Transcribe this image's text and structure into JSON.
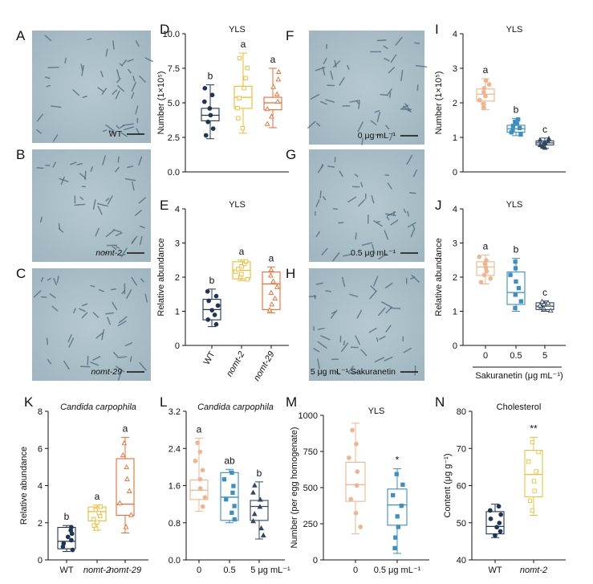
{
  "colors": {
    "dark": "#1f3556",
    "yellow": "#f2b92b",
    "orange": "#ef6a2d",
    "peach": "#f1b48e",
    "blue": "#3a8fc4",
    "steel": "#314763",
    "gold": "#f0bf38",
    "micro": "#aabfc8"
  },
  "photos": {
    "A": {
      "letter": "A",
      "caption": "WT",
      "italic": false
    },
    "B": {
      "letter": "B",
      "caption": "nomt-2",
      "italic": true
    },
    "C": {
      "letter": "C",
      "caption": "nomt-29",
      "italic": true
    },
    "F": {
      "letter": "F",
      "caption": "0 μg mL⁻¹",
      "italic": false
    },
    "G": {
      "letter": "G",
      "caption": "0.5 μg mL⁻¹",
      "italic": false
    },
    "H": {
      "letter": "H",
      "caption": "5 μg mL⁻¹ Sakuranetin",
      "italic": false
    }
  },
  "chart_data": [
    {
      "id": "D",
      "type": "box",
      "title": "YLS",
      "title_italic": false,
      "ylabel": "Number (1×10⁵)",
      "ylim": [
        0,
        10
      ],
      "yticks": [
        "0.0",
        "2.5",
        "5.0",
        "7.5",
        "10.0"
      ],
      "categories": [],
      "groups": [
        {
          "color": "#1f3556",
          "marker": "circle",
          "fill": true,
          "q1": 3.7,
          "median": 4.1,
          "q3": 4.6,
          "wmin": 2.4,
          "wmax": 6.3,
          "letter": "b"
        },
        {
          "color": "#f2b92b",
          "marker": "square",
          "fill": false,
          "q1": 4.6,
          "median": 5.4,
          "q3": 6.2,
          "wmin": 2.8,
          "wmax": 8.6,
          "letter": "a"
        },
        {
          "color": "#ef6a2d",
          "marker": "triangle",
          "fill": false,
          "q1": 4.5,
          "median": 5.0,
          "q3": 5.4,
          "wmin": 3.2,
          "wmax": 7.5,
          "letter": "a"
        }
      ]
    },
    {
      "id": "E",
      "type": "box",
      "title": "YLS",
      "title_italic": false,
      "ylabel": "Relative abundance",
      "ylim": [
        0,
        4
      ],
      "yticks": [
        "0",
        "1",
        "2",
        "3",
        "4"
      ],
      "categories": [
        "WT",
        "nomt-2",
        "nomt-29"
      ],
      "cat_italic": [
        false,
        true,
        true
      ],
      "rotate": true,
      "groups": [
        {
          "color": "#1f3556",
          "marker": "circle",
          "fill": true,
          "q1": 0.75,
          "median": 1.05,
          "q3": 1.35,
          "wmin": 0.55,
          "wmax": 1.65,
          "letter": "b"
        },
        {
          "color": "#f2b92b",
          "marker": "square",
          "fill": false,
          "q1": 1.95,
          "median": 2.2,
          "q3": 2.45,
          "wmin": 1.9,
          "wmax": 2.5,
          "letter": "a"
        },
        {
          "color": "#ef6a2d",
          "marker": "triangle",
          "fill": false,
          "q1": 1.05,
          "median": 1.8,
          "q3": 2.15,
          "wmin": 0.95,
          "wmax": 2.3,
          "letter": "a"
        }
      ]
    },
    {
      "id": "I",
      "type": "box",
      "title": "YLS",
      "title_italic": false,
      "ylabel": "Number (1×10⁵)",
      "ylim": [
        0,
        4
      ],
      "yticks": [
        "0",
        "1",
        "2",
        "3",
        "4"
      ],
      "categories": [],
      "groups": [
        {
          "color": "#f1b48e",
          "marker": "circle",
          "fill": true,
          "q1": 2.05,
          "median": 2.25,
          "q3": 2.4,
          "wmin": 1.8,
          "wmax": 2.7,
          "letter": "a"
        },
        {
          "color": "#3a8fc4",
          "marker": "square",
          "fill": true,
          "q1": 1.15,
          "median": 1.25,
          "q3": 1.35,
          "wmin": 1.05,
          "wmax": 1.55,
          "letter": "b"
        },
        {
          "color": "#314763",
          "marker": "triangle",
          "fill": true,
          "q1": 0.78,
          "median": 0.84,
          "q3": 0.9,
          "wmin": 0.68,
          "wmax": 0.98,
          "letter": "c"
        }
      ]
    },
    {
      "id": "J",
      "type": "box",
      "title": "YLS",
      "title_italic": false,
      "ylabel": "Relative abundance",
      "ylim": [
        0,
        4
      ],
      "yticks": [
        "0",
        "1",
        "2",
        "3",
        "4"
      ],
      "categories": [
        "0",
        "0.5",
        "5"
      ],
      "xlabel": "Sakuranetin (μg mL⁻¹)",
      "groups": [
        {
          "color": "#f1b48e",
          "marker": "circle",
          "fill": true,
          "q1": 2.05,
          "median": 2.3,
          "q3": 2.45,
          "wmin": 1.8,
          "wmax": 2.65,
          "letter": "a"
        },
        {
          "color": "#3a8fc4",
          "marker": "square",
          "fill": true,
          "q1": 1.2,
          "median": 1.55,
          "q3": 2.15,
          "wmin": 1.0,
          "wmax": 2.55,
          "letter": "b"
        },
        {
          "color": "#314763",
          "marker": "triangle",
          "fill": false,
          "q1": 1.05,
          "median": 1.15,
          "q3": 1.25,
          "wmin": 1.0,
          "wmax": 1.3,
          "letter": "c"
        }
      ]
    },
    {
      "id": "K",
      "type": "box",
      "title": "Candida carpophila",
      "title_italic": true,
      "ylabel": "Relative abundance",
      "ylim": [
        0,
        8
      ],
      "yticks": [
        "0",
        "2",
        "4",
        "6",
        "8"
      ],
      "categories": [
        "WT",
        "nomt-2",
        "nomt-29"
      ],
      "cat_italic": [
        false,
        true,
        true
      ],
      "groups": [
        {
          "color": "#1f3556",
          "marker": "circle",
          "fill": true,
          "q1": 0.6,
          "median": 1.0,
          "q3": 1.75,
          "wmin": 0.45,
          "wmax": 1.85,
          "letter": "b"
        },
        {
          "color": "#f2b92b",
          "marker": "square",
          "fill": false,
          "q1": 2.1,
          "median": 2.6,
          "q3": 2.85,
          "wmin": 1.6,
          "wmax": 2.95,
          "letter": "a"
        },
        {
          "color": "#ef6a2d",
          "marker": "triangle",
          "fill": false,
          "q1": 2.4,
          "median": 3.0,
          "q3": 5.45,
          "wmin": 1.45,
          "wmax": 6.6,
          "letter": "a"
        }
      ]
    },
    {
      "id": "L",
      "type": "box",
      "title": "Candida carpophila",
      "title_italic": true,
      "ylabel": "",
      "ylim": [
        0,
        3.2
      ],
      "yticks": [
        "0.0",
        "0.8",
        "1.6",
        "2.4",
        "3.2"
      ],
      "categories": [
        "0",
        "0.5",
        "5 μg mL⁻¹"
      ],
      "groups": [
        {
          "color": "#f1b48e",
          "marker": "circle",
          "fill": true,
          "q1": 1.3,
          "median": 1.5,
          "q3": 1.72,
          "wmin": 1.05,
          "wmax": 2.62,
          "letter": "a"
        },
        {
          "color": "#3a8fc4",
          "marker": "square",
          "fill": true,
          "q1": 0.85,
          "median": 1.35,
          "q3": 1.88,
          "wmin": 0.8,
          "wmax": 1.95,
          "letter": "ab"
        },
        {
          "color": "#314763",
          "marker": "triangle",
          "fill": true,
          "q1": 0.85,
          "median": 1.15,
          "q3": 1.28,
          "wmin": 0.45,
          "wmax": 1.68,
          "letter": "b"
        }
      ]
    },
    {
      "id": "M",
      "type": "box",
      "title": "YLS",
      "title_italic": false,
      "ylabel": "Number (per egg homogenate)",
      "ylim": [
        0,
        1000
      ],
      "yticks": [
        "0",
        "250",
        "500",
        "750",
        "1000"
      ],
      "categories": [
        "0",
        "0.5 μg mL⁻¹"
      ],
      "groups": [
        {
          "color": "#f1b48e",
          "marker": "circle",
          "fill": true,
          "q1": 405,
          "median": 520,
          "q3": 675,
          "wmin": 180,
          "wmax": 945,
          "letter": ""
        },
        {
          "color": "#3a8fc4",
          "marker": "square",
          "fill": true,
          "q1": 240,
          "median": 380,
          "q3": 490,
          "wmin": 45,
          "wmax": 630,
          "letter": "*"
        }
      ]
    },
    {
      "id": "N",
      "type": "box",
      "title": "Cholesterol",
      "title_italic": false,
      "ylabel": "Content (μg g⁻¹)",
      "ylim": [
        40,
        80
      ],
      "yticks": [
        "40",
        "50",
        "60",
        "70",
        "80"
      ],
      "categories": [
        "WT",
        "nomt-2"
      ],
      "cat_italic": [
        false,
        true
      ],
      "groups": [
        {
          "color": "#1f3556",
          "marker": "circle",
          "fill": true,
          "q1": 47,
          "median": 49,
          "q3": 53,
          "wmin": 46,
          "wmax": 55,
          "letter": ""
        },
        {
          "color": "#f0bf38",
          "marker": "square",
          "fill": false,
          "q1": 57,
          "median": 63,
          "q3": 69.5,
          "wmin": 52,
          "wmax": 73,
          "letter": "**"
        }
      ]
    }
  ]
}
